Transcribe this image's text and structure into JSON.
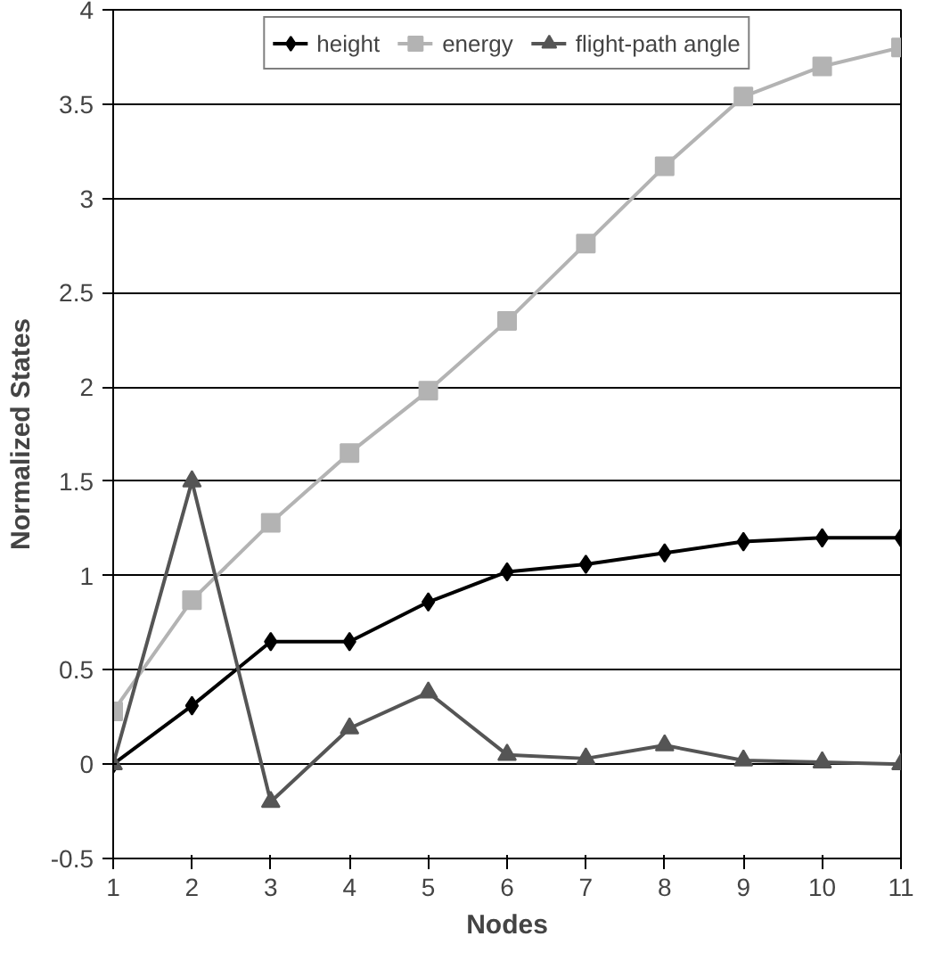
{
  "chart_data": {
    "type": "line",
    "xlabel": "Nodes",
    "ylabel": "Normalized States",
    "x": [
      1,
      2,
      3,
      4,
      5,
      6,
      7,
      8,
      9,
      10,
      11
    ],
    "xlim": [
      1,
      11
    ],
    "xticks": [
      1,
      2,
      3,
      4,
      5,
      6,
      7,
      8,
      9,
      10,
      11
    ],
    "ylim": [
      -0.5,
      4
    ],
    "yticks": [
      -0.5,
      0,
      0.5,
      1,
      1.5,
      2,
      2.5,
      3,
      3.5,
      4
    ],
    "grid": "y",
    "legend": "top",
    "series": [
      {
        "name": "height",
        "color": "#000000",
        "marker": "diamond",
        "values": [
          0,
          0.31,
          0.65,
          0.65,
          0.86,
          1.02,
          1.06,
          1.12,
          1.18,
          1.2,
          1.2
        ]
      },
      {
        "name": "energy",
        "color": "#b3b3b3",
        "marker": "square",
        "values": [
          0.28,
          0.87,
          1.28,
          1.65,
          1.98,
          2.35,
          2.76,
          3.17,
          3.54,
          3.7,
          3.8
        ]
      },
      {
        "name": "flight-path angle",
        "color": "#555555",
        "marker": "triangle",
        "values": [
          0,
          1.5,
          -0.2,
          0.19,
          0.38,
          0.05,
          0.03,
          0.1,
          0.02,
          0.01,
          0.0
        ]
      }
    ]
  }
}
